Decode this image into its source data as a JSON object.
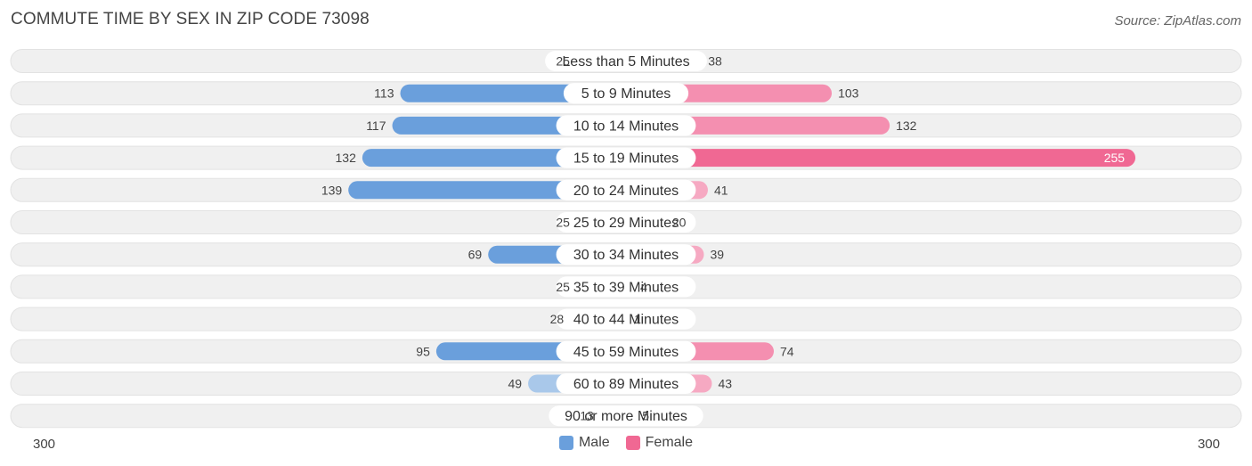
{
  "title": "COMMUTE TIME BY SEX IN ZIP CODE 73098",
  "source": "Source: ZipAtlas.com",
  "colors": {
    "male": "#6a9fdc",
    "male_light": "#a9c8ea",
    "female": "#f06893",
    "female_light": "#f6a9c2",
    "row_bg": "#f0f0f0"
  },
  "chart_data": {
    "type": "bar",
    "orientation": "horizontal-diverging",
    "categories": [
      "Less than 5 Minutes",
      "5 to 9 Minutes",
      "10 to 14 Minutes",
      "15 to 19 Minutes",
      "20 to 24 Minutes",
      "25 to 29 Minutes",
      "30 to 34 Minutes",
      "35 to 39 Minutes",
      "40 to 44 Minutes",
      "45 to 59 Minutes",
      "60 to 89 Minutes",
      "90 or more Minutes"
    ],
    "series": [
      {
        "name": "Male",
        "values": [
          25,
          113,
          117,
          132,
          139,
          25,
          69,
          25,
          28,
          95,
          49,
          13
        ]
      },
      {
        "name": "Female",
        "values": [
          38,
          103,
          132,
          255,
          41,
          20,
          39,
          4,
          1,
          74,
          43,
          5
        ]
      }
    ],
    "axis_max": 300,
    "axis_labels": {
      "left": "300",
      "right": "300"
    },
    "legend_position": "bottom-center"
  }
}
